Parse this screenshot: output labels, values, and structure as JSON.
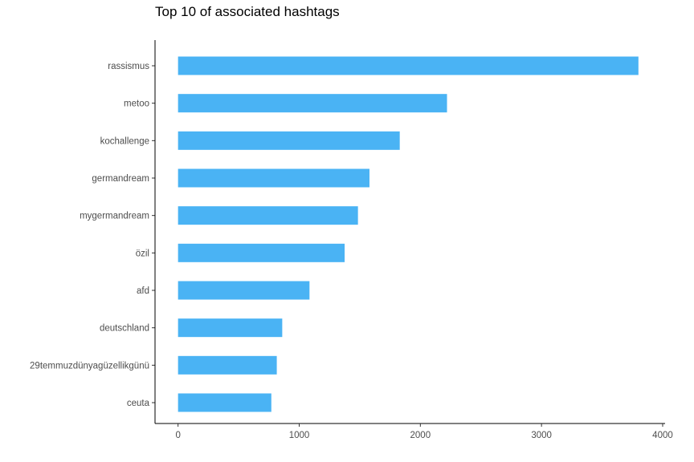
{
  "chart_data": {
    "type": "bar",
    "orientation": "horizontal",
    "title": "Top 10 of associated hashtags",
    "xlabel": "",
    "ylabel": "",
    "categories": [
      "rassismus",
      "metoo",
      "kochallenge",
      "germandream",
      "mygermandream",
      "özil",
      "afd",
      "deutschland",
      "29temmuzdünyagüzellikgünü",
      "ceuta"
    ],
    "values": [
      3800,
      2220,
      1830,
      1580,
      1485,
      1375,
      1085,
      860,
      815,
      770
    ],
    "xlim": [
      -190,
      4020
    ],
    "xticks": [
      0,
      1000,
      2000,
      3000,
      4000
    ],
    "grid": false,
    "bar_color": "#4AB3F4"
  }
}
